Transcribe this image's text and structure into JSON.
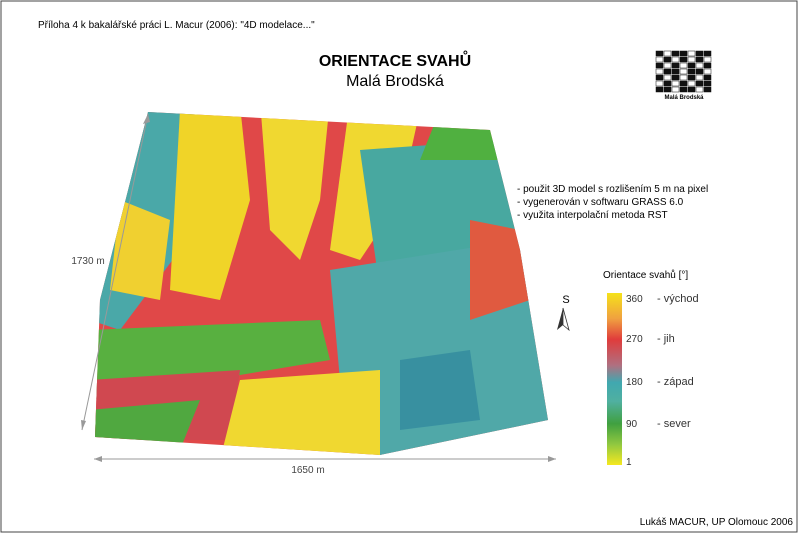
{
  "header": {
    "note": "Příloha 4 k bakalářské práci L. Macur (2006): \"4D modelace...\"",
    "title": "ORIENTACE SVAHŮ",
    "subtitle": "Malá Brodská",
    "logo_text": "Malá Brodská"
  },
  "notes": [
    "- použit 3D model s rozlišením 5 m na pixel",
    "- vygenerován v softwaru GRASS 6.0",
    "- využita interpolační metoda RST"
  ],
  "dimensions": {
    "height": "1730 m",
    "width": "1650 m"
  },
  "north_arrow": "S",
  "legend": {
    "title": "Orientace svahů [°]",
    "ticks": [
      {
        "value": "360",
        "description": "- východ"
      },
      {
        "value": "270",
        "description": "- jih"
      },
      {
        "value": "180",
        "description": "- západ"
      },
      {
        "value": "90",
        "description": "- sever"
      },
      {
        "value": "1"
      }
    ]
  },
  "footer": "Lukáš MACUR, UP Olomouc 2006"
}
